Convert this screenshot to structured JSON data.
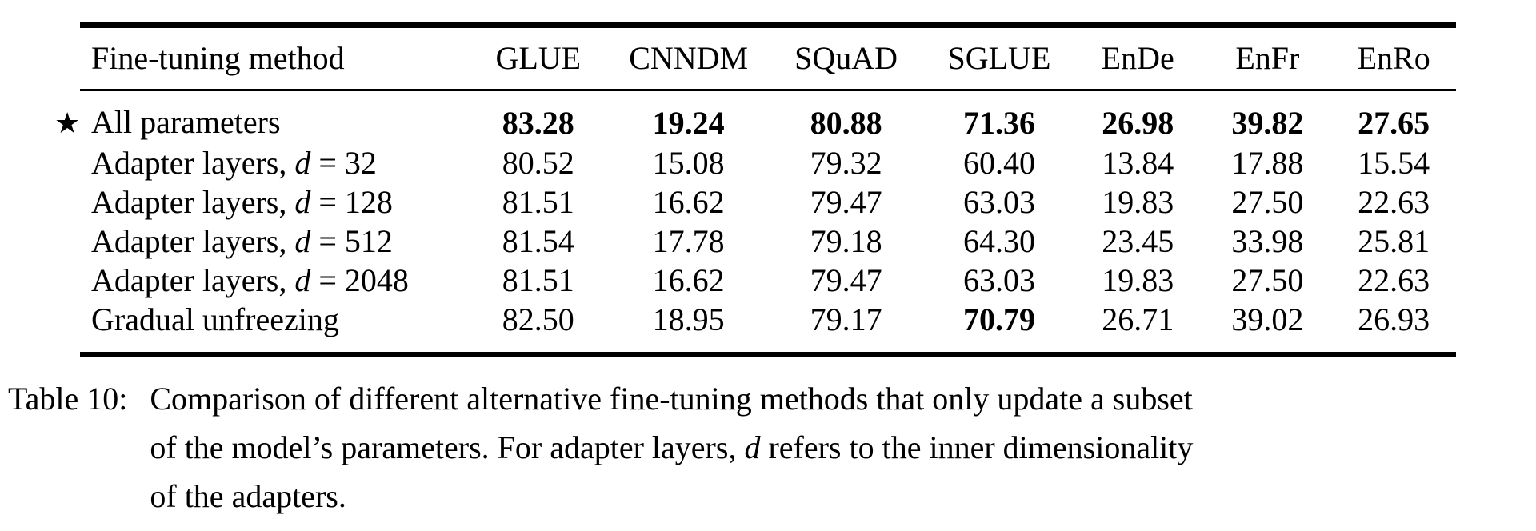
{
  "page": {
    "background": "#ffffff",
    "text_color": "#000000"
  },
  "table": {
    "star_symbol": "★",
    "header": [
      "Fine-tuning method",
      "GLUE",
      "CNNDM",
      "SQuAD",
      "SGLUE",
      "EnDe",
      "EnFr",
      "EnRo"
    ],
    "rows": [
      {
        "star": true,
        "method": "All parameters",
        "values": [
          "83.28",
          "19.24",
          "80.88",
          "71.36",
          "26.98",
          "39.82",
          "27.65"
        ],
        "bold": [
          true,
          true,
          true,
          true,
          true,
          true,
          true
        ]
      },
      {
        "star": false,
        "method": "Adapter layers, $d$ = 32",
        "values": [
          "80.52",
          "15.08",
          "79.32",
          "60.40",
          "13.84",
          "17.88",
          "15.54"
        ],
        "bold": [
          false,
          false,
          false,
          false,
          false,
          false,
          false
        ]
      },
      {
        "star": false,
        "method": "Adapter layers, $d$ = 128",
        "values": [
          "81.51",
          "16.62",
          "79.47",
          "63.03",
          "19.83",
          "27.50",
          "22.63"
        ],
        "bold": [
          false,
          false,
          false,
          false,
          false,
          false,
          false
        ]
      },
      {
        "star": false,
        "method": "Adapter layers, $d$ = 512",
        "values": [
          "81.54",
          "17.78",
          "79.18",
          "64.30",
          "23.45",
          "33.98",
          "25.81"
        ],
        "bold": [
          false,
          false,
          false,
          false,
          false,
          false,
          false
        ]
      },
      {
        "star": false,
        "method": "Adapter layers, $d$ = 2048",
        "values": [
          "81.51",
          "16.62",
          "79.47",
          "63.03",
          "19.83",
          "27.50",
          "22.63"
        ],
        "bold": [
          false,
          false,
          false,
          false,
          false,
          false,
          false
        ]
      },
      {
        "star": false,
        "method": "Gradual unfreezing",
        "values": [
          "82.50",
          "18.95",
          "79.17",
          "70.79",
          "26.71",
          "39.02",
          "26.93"
        ],
        "bold": [
          false,
          false,
          false,
          true,
          false,
          false,
          false
        ]
      }
    ]
  },
  "caption": {
    "label": "Table 10:",
    "lines": [
      "Comparison of different alternative fine-tuning methods that only update a subset",
      "of the model’s parameters. For adapter layers, $d$ refers to the inner dimensionality",
      "of the adapters."
    ]
  }
}
